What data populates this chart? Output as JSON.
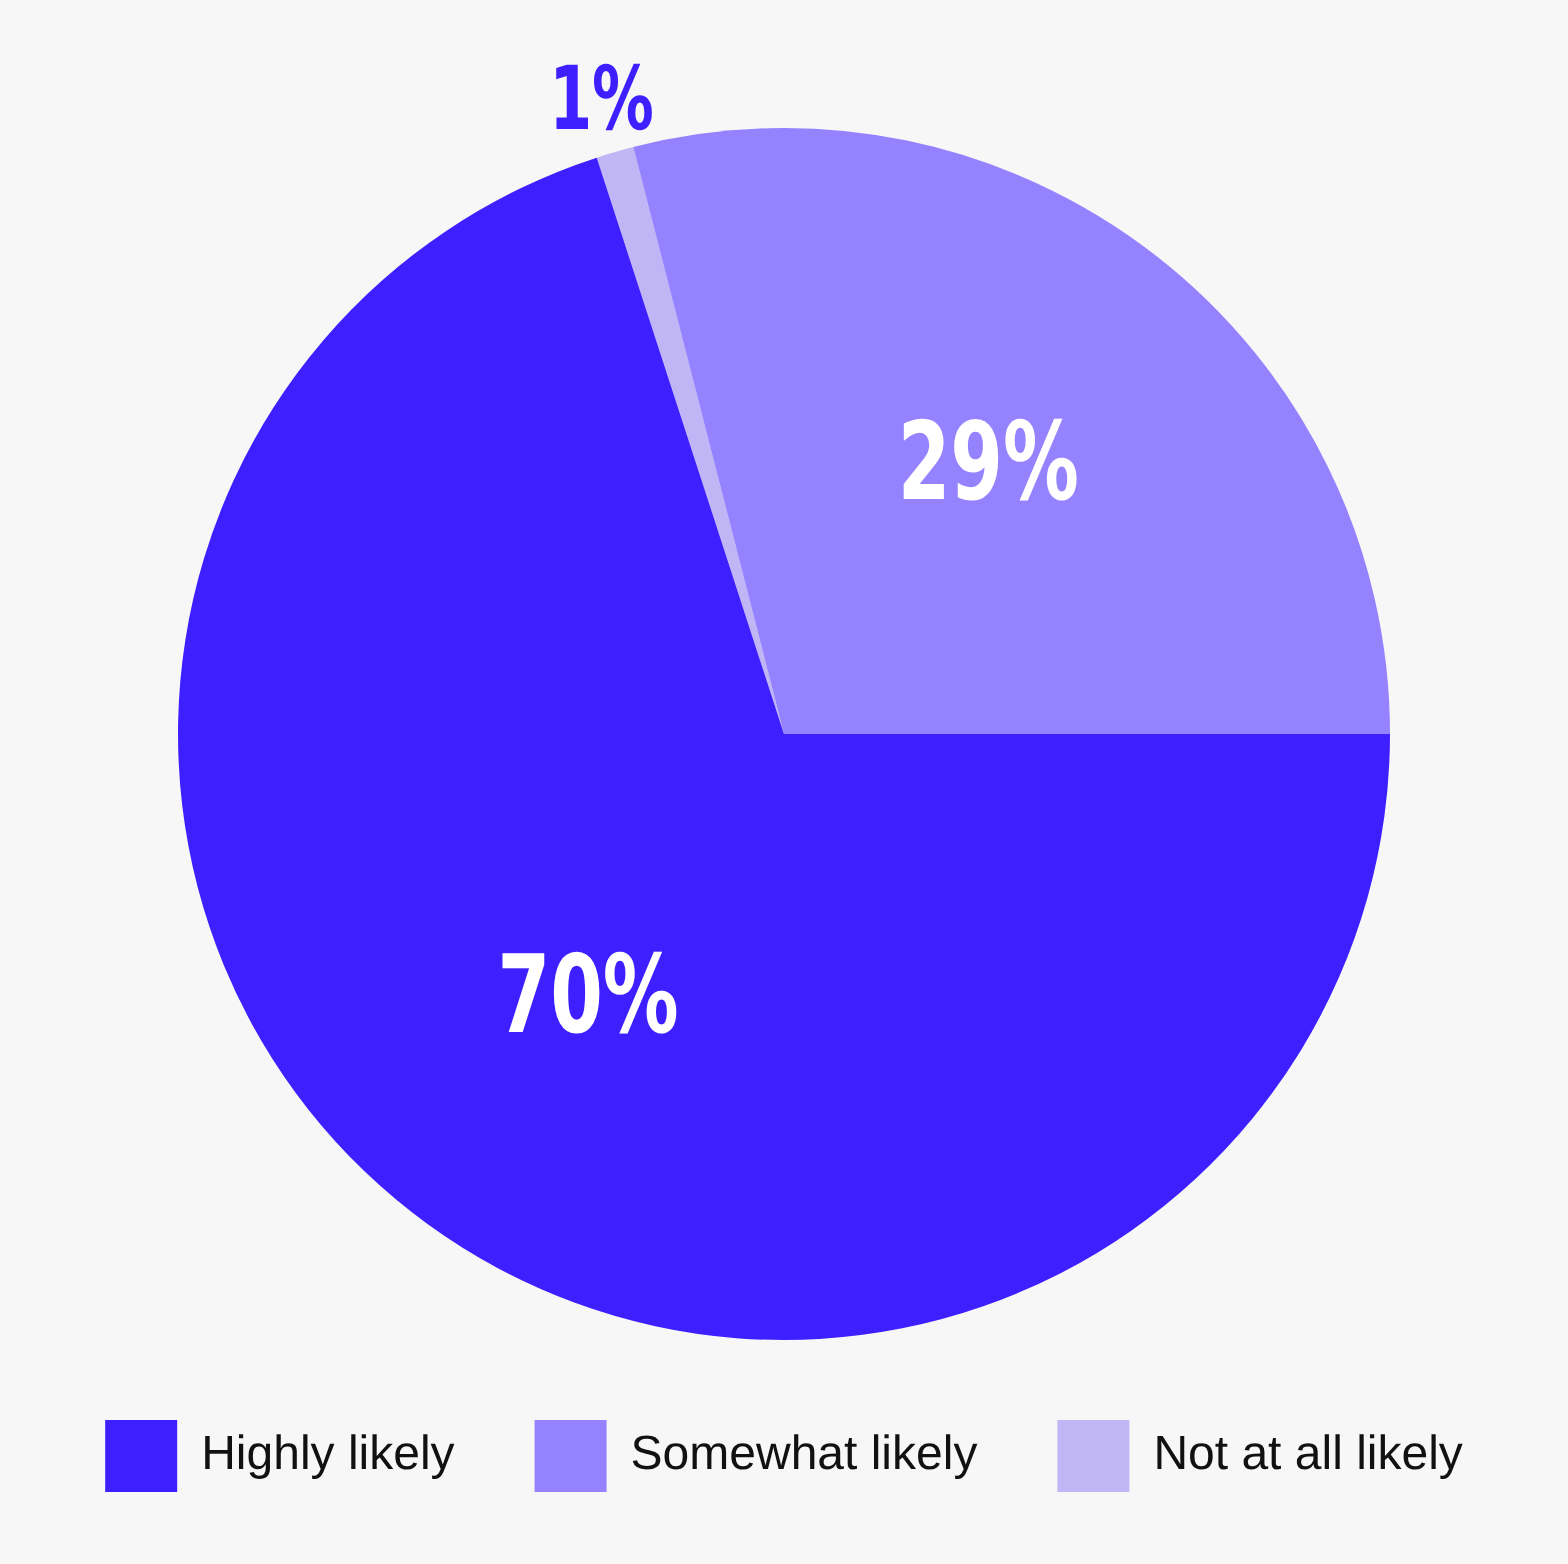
{
  "chart_data": {
    "type": "pie",
    "categories": [
      "Highly likely",
      "Somewhat likely",
      "Not at all likely"
    ],
    "values": [
      70,
      29,
      1
    ],
    "colors": [
      "#3d1fff",
      "#9582ff",
      "#c0b6f5"
    ],
    "value_labels": [
      "70%",
      "29%",
      "1%"
    ],
    "legend": "bottom"
  }
}
